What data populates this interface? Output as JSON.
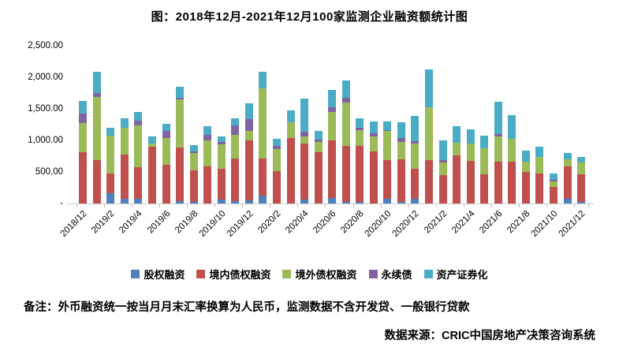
{
  "title": "图：2018年12月-2021年12月100家监测企业融资额统计图",
  "note": "备注：外币融资统一按当月月末汇率换算为人民币，监测数据不含开发贷、一般银行贷款",
  "source": "数据来源：CRIC中国房地产决策咨询系统",
  "colors": {
    "equity_blue": "#4F81BD",
    "domestic_debt_red": "#C0504D",
    "overseas_debt_green": "#9BBB59",
    "perpetual_purple": "#8064A2",
    "abs_cyan": "#4BACC6",
    "axis_gray": "#c9c9c9",
    "tick_gray": "#bfbfbf"
  },
  "chart_data": {
    "type": "bar",
    "stacked": true,
    "title": "图：2018年12月-2021年12月100家监测企业融资额统计图",
    "xlabel": "",
    "ylabel": "",
    "ylim": [
      0,
      2500
    ],
    "grid": false,
    "legend_position": "bottom",
    "y_tick_values": [
      2500,
      2000,
      1500,
      1000,
      500,
      0
    ],
    "y_tick_labels": [
      "2,500.00",
      "2,000.00",
      "1,500.00",
      "1,000.00",
      "500.00",
      "-"
    ],
    "categories": [
      "2018/12",
      "2019/1",
      "2019/2",
      "2019/3",
      "2019/4",
      "2019/5",
      "2019/6",
      "2019/7",
      "2019/8",
      "2019/9",
      "2019/10",
      "2019/11",
      "2019/12",
      "2020/1",
      "2020/2",
      "2020/3",
      "2020/4",
      "2020/5",
      "2020/6",
      "2020/7",
      "2020/8",
      "2020/9",
      "2020/10",
      "2020/11",
      "2020/12",
      "2021/1",
      "2021/2",
      "2021/3",
      "2021/4",
      "2021/5",
      "2021/6",
      "2021/7",
      "2021/8",
      "2021/9",
      "2021/10",
      "2021/11",
      "2021/12"
    ],
    "x_tick_labels": [
      "2018/12",
      "2019/2",
      "2019/4",
      "2019/6",
      "2019/8",
      "2019/10",
      "2019/12",
      "2020/2",
      "2020/4",
      "2020/6",
      "2020/8",
      "2020/10",
      "2020/12",
      "2021/2",
      "2021/4",
      "2021/6",
      "2021/8",
      "2021/10",
      "2021/12"
    ],
    "x_label_every": 2,
    "series": [
      {
        "name": "股权融资",
        "color": "#4F81BD",
        "values": [
          0,
          0,
          165,
          80,
          70,
          0,
          0,
          35,
          30,
          0,
          65,
          35,
          50,
          120,
          0,
          0,
          65,
          0,
          90,
          30,
          25,
          0,
          80,
          20,
          70,
          0,
          0,
          0,
          0,
          0,
          0,
          0,
          0,
          0,
          0,
          80,
          20
        ]
      },
      {
        "name": "境内债权融资",
        "color": "#C0504D",
        "values": [
          810,
          685,
          315,
          700,
          510,
          895,
          615,
          855,
          500,
          585,
          480,
          680,
          945,
          595,
          515,
          1035,
          890,
          815,
          905,
          885,
          890,
          830,
          610,
          675,
          480,
          690,
          455,
          765,
          675,
          465,
          665,
          665,
          495,
          480,
          260,
          510,
          445
        ]
      },
      {
        "name": "境外债权融资",
        "color": "#9BBB59",
        "values": [
          465,
          1005,
          600,
          425,
          660,
          60,
          425,
          755,
          270,
          415,
          395,
          375,
          150,
          1110,
          345,
          250,
          110,
          155,
          460,
          690,
          245,
          235,
          455,
          285,
          405,
          840,
          200,
          200,
          280,
          405,
          400,
          365,
          165,
          260,
          85,
          105,
          180
        ]
      },
      {
        "name": "永续债",
        "color": "#8064A2",
        "values": [
          145,
          60,
          0,
          0,
          75,
          0,
          110,
          30,
          30,
          85,
          30,
          145,
          195,
          0,
          50,
          0,
          70,
          40,
          70,
          70,
          40,
          50,
          20,
          60,
          35,
          0,
          35,
          0,
          0,
          0,
          30,
          0,
          0,
          0,
          30,
          0,
          0
        ]
      },
      {
        "name": "资产证券化",
        "color": "#4BACC6",
        "values": [
          200,
          335,
          115,
          150,
          130,
          110,
          110,
          175,
          90,
          135,
          90,
          115,
          250,
          265,
          115,
          190,
          530,
          140,
          280,
          280,
          150,
          185,
          135,
          250,
          400,
          595,
          310,
          265,
          220,
          200,
          520,
          375,
          180,
          165,
          95,
          105,
          90
        ]
      }
    ]
  }
}
